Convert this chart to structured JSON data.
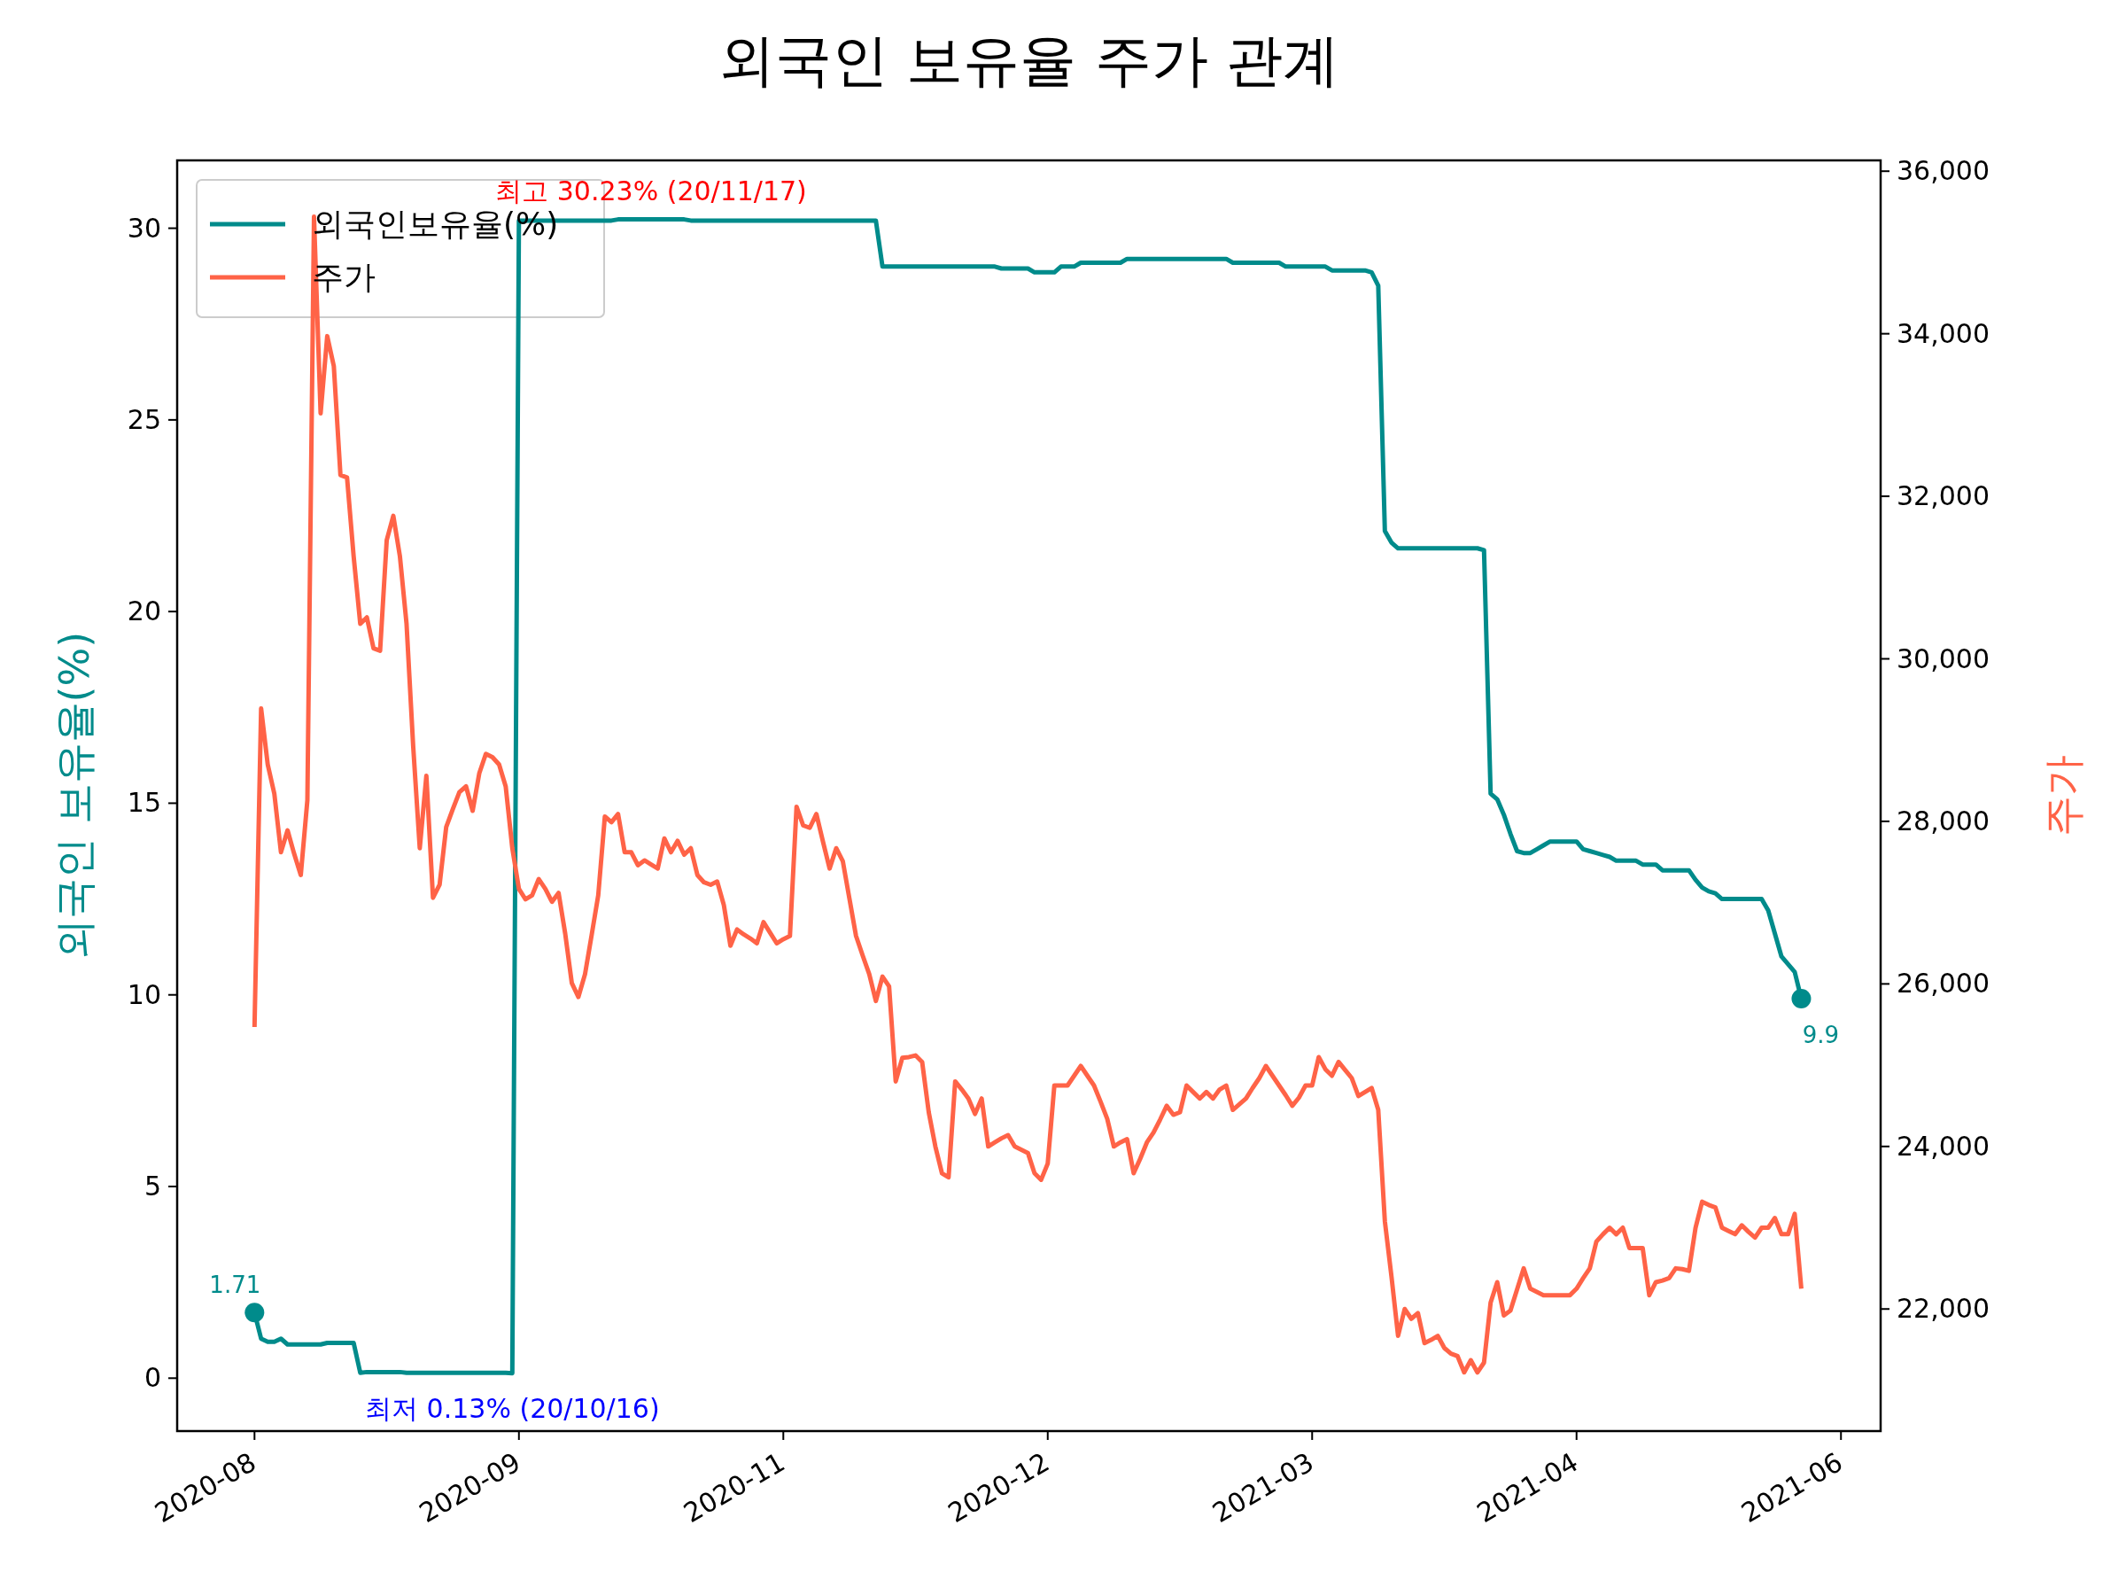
{
  "chart_data": {
    "type": "line",
    "title": "외국인 보유율 주가 관계",
    "ylabel": "외국인 보유율(%)",
    "y2label": "주가",
    "legend": "top left",
    "grid": false,
    "line_style": "solid",
    "categories": [
      "2020-08",
      null,
      null,
      null,
      null,
      null,
      null,
      null,
      null,
      null,
      null,
      null,
      null,
      null,
      null,
      null,
      null,
      null,
      null,
      null,
      null,
      null,
      null,
      null,
      null,
      null,
      null,
      null,
      null,
      null,
      null,
      null,
      null,
      null,
      null,
      null,
      null,
      null,
      null,
      null,
      "2020-09",
      null,
      null,
      null,
      null,
      null,
      null,
      null,
      null,
      null,
      null,
      null,
      null,
      null,
      null,
      null,
      null,
      null,
      null,
      null,
      null,
      null,
      null,
      null,
      null,
      null,
      null,
      null,
      null,
      null,
      null,
      null,
      null,
      null,
      null,
      null,
      null,
      null,
      null,
      null,
      "2020-11",
      null,
      null,
      null,
      null,
      null,
      null,
      null,
      null,
      null,
      null,
      null,
      null,
      null,
      null,
      null,
      null,
      null,
      null,
      null,
      null,
      null,
      null,
      null,
      null,
      null,
      null,
      null,
      null,
      null,
      null,
      null,
      null,
      null,
      null,
      null,
      null,
      null,
      null,
      null,
      "2020-12",
      null,
      null,
      null,
      null,
      null,
      null,
      null,
      null,
      null,
      null,
      null,
      null,
      null,
      null,
      null,
      null,
      null,
      null,
      null,
      null,
      null,
      null,
      null,
      null,
      null,
      null,
      null,
      null,
      null,
      null,
      null,
      null,
      null,
      null,
      null,
      null,
      null,
      null,
      null,
      "2021-03",
      null,
      null,
      null,
      null,
      null,
      null,
      null,
      null,
      null,
      null,
      null,
      null,
      null,
      null,
      null,
      null,
      null,
      null,
      null,
      null,
      null,
      null,
      null,
      null,
      null,
      null,
      null,
      null,
      null,
      null,
      null,
      null,
      null,
      null,
      null,
      null,
      null,
      null,
      null,
      "2021-04",
      null,
      null,
      null,
      null,
      null,
      null,
      null,
      null,
      null,
      null,
      null,
      null,
      null,
      null,
      null,
      null,
      null,
      null,
      null,
      null,
      null,
      null,
      null,
      null,
      null,
      null,
      null,
      null,
      null,
      null,
      null,
      null,
      null,
      null,
      null,
      null,
      null,
      null,
      null,
      "2021-06"
    ],
    "ylim": [
      -1.38,
      31.77
    ],
    "yticks": [
      0,
      5,
      10,
      15,
      20,
      25,
      30
    ],
    "y2lim": [
      20498,
      36133
    ],
    "y2ticks": [
      {
        "value": 22000,
        "label": "22,000"
      },
      {
        "value": 24000,
        "label": "24,000"
      },
      {
        "value": 26000,
        "label": "26,000"
      },
      {
        "value": 28000,
        "label": "28,000"
      },
      {
        "value": 30000,
        "label": "30,000"
      },
      {
        "value": 32000,
        "label": "32,000"
      },
      {
        "value": 34000,
        "label": "34,000"
      },
      {
        "value": 36000,
        "label": "36,000"
      }
    ],
    "series": [
      {
        "name": "외국인보유율(%)",
        "color": "#008b8b",
        "values": [
          1.71,
          1.03,
          0.95,
          0.95,
          1.03,
          0.88,
          0.88,
          0.88,
          0.88,
          0.88,
          0.88,
          0.92,
          0.92,
          0.92,
          0.92,
          0.92,
          0.14,
          0.16,
          0.16,
          0.16,
          0.16,
          0.16,
          0.16,
          0.14,
          0.14,
          0.14,
          0.14,
          0.14,
          0.14,
          0.14,
          0.14,
          0.14,
          0.14,
          0.14,
          0.14,
          0.14,
          0.14,
          0.14,
          0.14,
          0.13,
          30.2,
          30.2,
          30.2,
          30.2,
          30.2,
          30.2,
          30.2,
          30.2,
          30.2,
          30.2,
          30.2,
          30.2,
          30.2,
          30.2,
          30.2,
          30.23,
          30.23,
          30.23,
          30.23,
          30.23,
          30.23,
          30.23,
          30.23,
          30.23,
          30.23,
          30.23,
          30.2,
          30.2,
          30.2,
          30.2,
          30.2,
          30.2,
          30.2,
          30.2,
          30.2,
          30.2,
          30.2,
          30.2,
          30.2,
          30.2,
          30.2,
          30.2,
          30.2,
          30.2,
          30.2,
          30.2,
          30.2,
          30.2,
          30.2,
          30.2,
          30.2,
          30.2,
          30.2,
          30.2,
          30.2,
          29.0,
          29.0,
          29.0,
          29.0,
          29.0,
          29.0,
          29.0,
          29.0,
          29.0,
          29.0,
          29.0,
          29.0,
          29.0,
          29.0,
          29.0,
          29.0,
          29.0,
          29.0,
          28.95,
          28.95,
          28.95,
          28.95,
          28.95,
          28.85,
          28.85,
          28.85,
          28.85,
          29.0,
          29.0,
          29.0,
          29.1,
          29.1,
          29.1,
          29.1,
          29.1,
          29.1,
          29.1,
          29.2,
          29.2,
          29.2,
          29.2,
          29.2,
          29.2,
          29.2,
          29.2,
          29.2,
          29.2,
          29.2,
          29.2,
          29.2,
          29.2,
          29.2,
          29.2,
          29.1,
          29.1,
          29.1,
          29.1,
          29.1,
          29.1,
          29.1,
          29.1,
          29.0,
          29.0,
          29.0,
          29.0,
          29.0,
          29.0,
          29.0,
          28.9,
          28.9,
          28.9,
          28.9,
          28.9,
          28.9,
          28.85,
          28.5,
          22.1,
          21.8,
          21.65,
          21.65,
          21.65,
          21.65,
          21.65,
          21.65,
          21.65,
          21.65,
          21.65,
          21.65,
          21.65,
          21.65,
          21.65,
          21.6,
          15.25,
          15.1,
          14.7,
          14.2,
          13.75,
          13.7,
          13.7,
          13.8,
          13.9,
          14.0,
          14.0,
          14.0,
          14.0,
          14.0,
          13.8,
          13.75,
          13.7,
          13.65,
          13.6,
          13.5,
          13.5,
          13.5,
          13.5,
          13.4,
          13.4,
          13.4,
          13.25,
          13.25,
          13.25,
          13.25,
          13.25,
          13.0,
          12.8,
          12.7,
          12.65,
          12.5,
          12.5,
          12.5,
          12.5,
          12.5,
          12.5,
          12.5,
          12.2,
          11.6,
          11.0,
          10.8,
          10.6,
          9.9,
          null,
          null,
          null,
          null,
          null,
          null
        ]
      },
      {
        "name": "주가",
        "color": "#ff6347",
        "axis": "y2",
        "values": [
          25470,
          29390,
          28700,
          28340,
          27620,
          27890,
          27600,
          27340,
          28260,
          35440,
          33020,
          33970,
          33600,
          32260,
          32230,
          31260,
          30430,
          30510,
          30130,
          30100,
          31460,
          31760,
          31260,
          30430,
          28930,
          27670,
          28560,
          27060,
          27220,
          27930,
          28150,
          28360,
          28430,
          28130,
          28590,
          28830,
          28790,
          28700,
          28430,
          27670,
          27170,
          27040,
          27090,
          27290,
          27170,
          27010,
          27120,
          26620,
          26010,
          25840,
          26120,
          26600,
          27090,
          28060,
          27990,
          28090,
          27620,
          27620,
          27460,
          27520,
          27470,
          27420,
          27790,
          27620,
          27760,
          27590,
          27670,
          27340,
          27250,
          27220,
          27260,
          26970,
          26470,
          26670,
          26610,
          26560,
          26500,
          26760,
          26630,
          26500,
          26550,
          26590,
          28180,
          27950,
          27920,
          28090,
          27750,
          27420,
          27670,
          27510,
          27050,
          26590,
          26350,
          26120,
          25790,
          26090,
          25970,
          24800,
          25090,
          25100,
          25120,
          25040,
          24420,
          24000,
          23670,
          23620,
          24800,
          24700,
          24590,
          24400,
          24590,
          24000,
          24050,
          24100,
          24140,
          24000,
          23960,
          23920,
          23670,
          23590,
          23790,
          24750,
          24750,
          24750,
          24870,
          24990,
          24870,
          24750,
          24550,
          24340,
          24000,
          24050,
          24090,
          23670,
          23850,
          24050,
          24170,
          24330,
          24500,
          24390,
          24420,
          24750,
          24670,
          24590,
          24670,
          24590,
          24700,
          24750,
          24450,
          24520,
          24590,
          24720,
          24840,
          24990,
          24870,
          24750,
          24630,
          24500,
          24600,
          24750,
          24750,
          25100,
          24950,
          24870,
          25040,
          24940,
          24840,
          24620,
          24670,
          24720,
          24450,
          23080,
          22400,
          21670,
          22000,
          21880,
          21950,
          21580,
          21620,
          21670,
          21520,
          21450,
          21420,
          21220,
          21370,
          21220,
          21340,
          22080,
          22330,
          21920,
          21980,
          22240,
          22500,
          22250,
          22210,
          22170,
          22170,
          22170,
          22170,
          22170,
          22250,
          22380,
          22500,
          22830,
          22920,
          23000,
          22920,
          23000,
          22750,
          22750,
          22750,
          22170,
          22330,
          22350,
          22380,
          22500,
          22490,
          22470,
          23000,
          23320,
          23280,
          23250,
          23000,
          22960,
          22920,
          23030,
          22950,
          22880,
          23000,
          23000,
          23120,
          22920,
          22920,
          23170,
          22250,
          null,
          null,
          null,
          null,
          null,
          null
        ]
      },
      {
        "type": "scatter",
        "color": "#008b8b",
        "marker": "circle",
        "values": [
          1.71,
          null,
          null,
          null,
          null,
          null,
          null,
          null,
          null,
          null,
          null,
          null,
          null,
          null,
          null,
          null,
          null,
          null,
          null,
          null,
          null,
          null,
          null,
          null,
          null,
          null,
          null,
          null,
          null,
          null,
          null,
          null,
          null,
          null,
          null,
          null,
          null,
          null,
          null,
          null,
          null,
          null,
          null,
          null,
          null,
          null,
          null,
          null,
          null,
          null,
          null,
          null,
          null,
          null,
          null,
          null,
          null,
          null,
          null,
          null,
          null,
          null,
          null,
          null,
          null,
          null,
          null,
          null,
          null,
          null,
          null,
          null,
          null,
          null,
          null,
          null,
          null,
          null,
          null,
          null,
          null,
          null,
          null,
          null,
          null,
          null,
          null,
          null,
          null,
          null,
          null,
          null,
          null,
          null,
          null,
          null,
          null,
          null,
          null,
          null,
          null,
          null,
          null,
          null,
          null,
          null,
          null,
          null,
          null,
          null,
          null,
          null,
          null,
          null,
          null,
          null,
          null,
          null,
          null,
          null,
          null,
          null,
          null,
          null,
          null,
          null,
          null,
          null,
          null,
          null,
          null,
          null,
          null,
          null,
          null,
          null,
          null,
          null,
          null,
          null,
          null,
          null,
          null,
          null,
          null,
          null,
          null,
          null,
          null,
          null,
          null,
          null,
          null,
          null,
          null,
          null,
          null,
          null,
          null,
          null,
          null,
          null,
          null,
          null,
          null,
          null,
          null,
          null,
          null,
          null,
          null,
          null,
          null,
          null,
          null,
          null,
          null,
          null,
          null,
          null,
          null,
          null,
          null,
          null,
          null,
          null,
          null,
          null,
          null,
          null,
          null,
          null,
          null,
          null,
          null,
          null,
          null,
          null,
          null,
          null,
          null,
          null,
          null,
          null,
          null,
          null,
          null,
          null,
          null,
          null,
          null,
          null,
          null,
          null,
          null,
          null,
          null,
          null,
          null,
          null,
          null,
          null,
          null,
          null,
          null,
          null,
          null,
          null,
          null,
          null,
          null,
          null,
          null,
          null,
          9.9,
          null,
          null,
          null,
          null,
          null,
          null
        ]
      }
    ],
    "annotations": [
      {
        "text": "최고 30.23% (20/11/17)",
        "y": 30.23
      },
      {
        "text": "최저 0.13% (20/10/16)",
        "y": 0.13
      },
      {
        "text": "1.71",
        "x": "2020-08",
        "y": 1.71
      },
      "9.9"
    ]
  }
}
